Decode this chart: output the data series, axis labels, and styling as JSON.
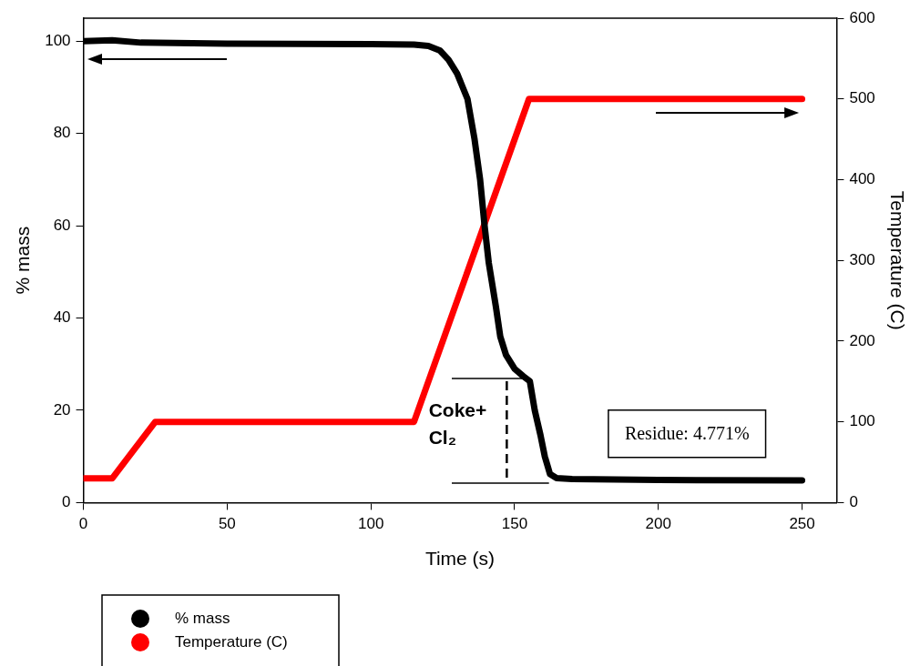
{
  "chart_data": {
    "type": "line",
    "xlabel": "Time (s)",
    "ylabel": "% mass",
    "y2label": "Temperature (C)",
    "xlim": [
      0,
      262
    ],
    "xticks": [
      0,
      50,
      100,
      150,
      200,
      250
    ],
    "ylim": [
      0,
      105
    ],
    "yticks": [
      0,
      20,
      40,
      60,
      80,
      100
    ],
    "y2lim": [
      0,
      600
    ],
    "y2ticks": [
      0,
      100,
      200,
      300,
      400,
      500,
      600
    ],
    "grid": false,
    "legend": "bottom left",
    "line_style": "solid",
    "series": [
      {
        "name": "% mass",
        "color": "#000000",
        "x": [
          0,
          10,
          20,
          50,
          100,
          115,
          120,
          124,
          127,
          130,
          133.6,
          136,
          138,
          139.5,
          141,
          143.5,
          145,
          147,
          150,
          153,
          155.3,
          157,
          159,
          160.5,
          162.3,
          164.6,
          170,
          200,
          250
        ],
        "values": [
          100,
          100.2,
          99.7,
          99.5,
          99.4,
          99.3,
          99,
          98,
          96,
          93,
          87.5,
          79,
          70,
          60.3,
          52,
          42.4,
          36,
          32,
          29,
          27.4,
          26.3,
          20,
          14.6,
          10,
          6.2,
          5.3,
          5.1,
          4.9,
          4.8
        ]
      },
      {
        "name": "Temperature (C)",
        "color": "#ff0000",
        "axis": "y2",
        "x": [
          0,
          10,
          25,
          115,
          155,
          250
        ],
        "values": [
          30,
          30,
          100,
          100,
          500,
          500
        ]
      }
    ],
    "annotations": [
      {
        "text": "Coke+Cl₂",
        "x": 155.3,
        "y": 26.3
      },
      "Residue: 4.771%"
    ]
  }
}
